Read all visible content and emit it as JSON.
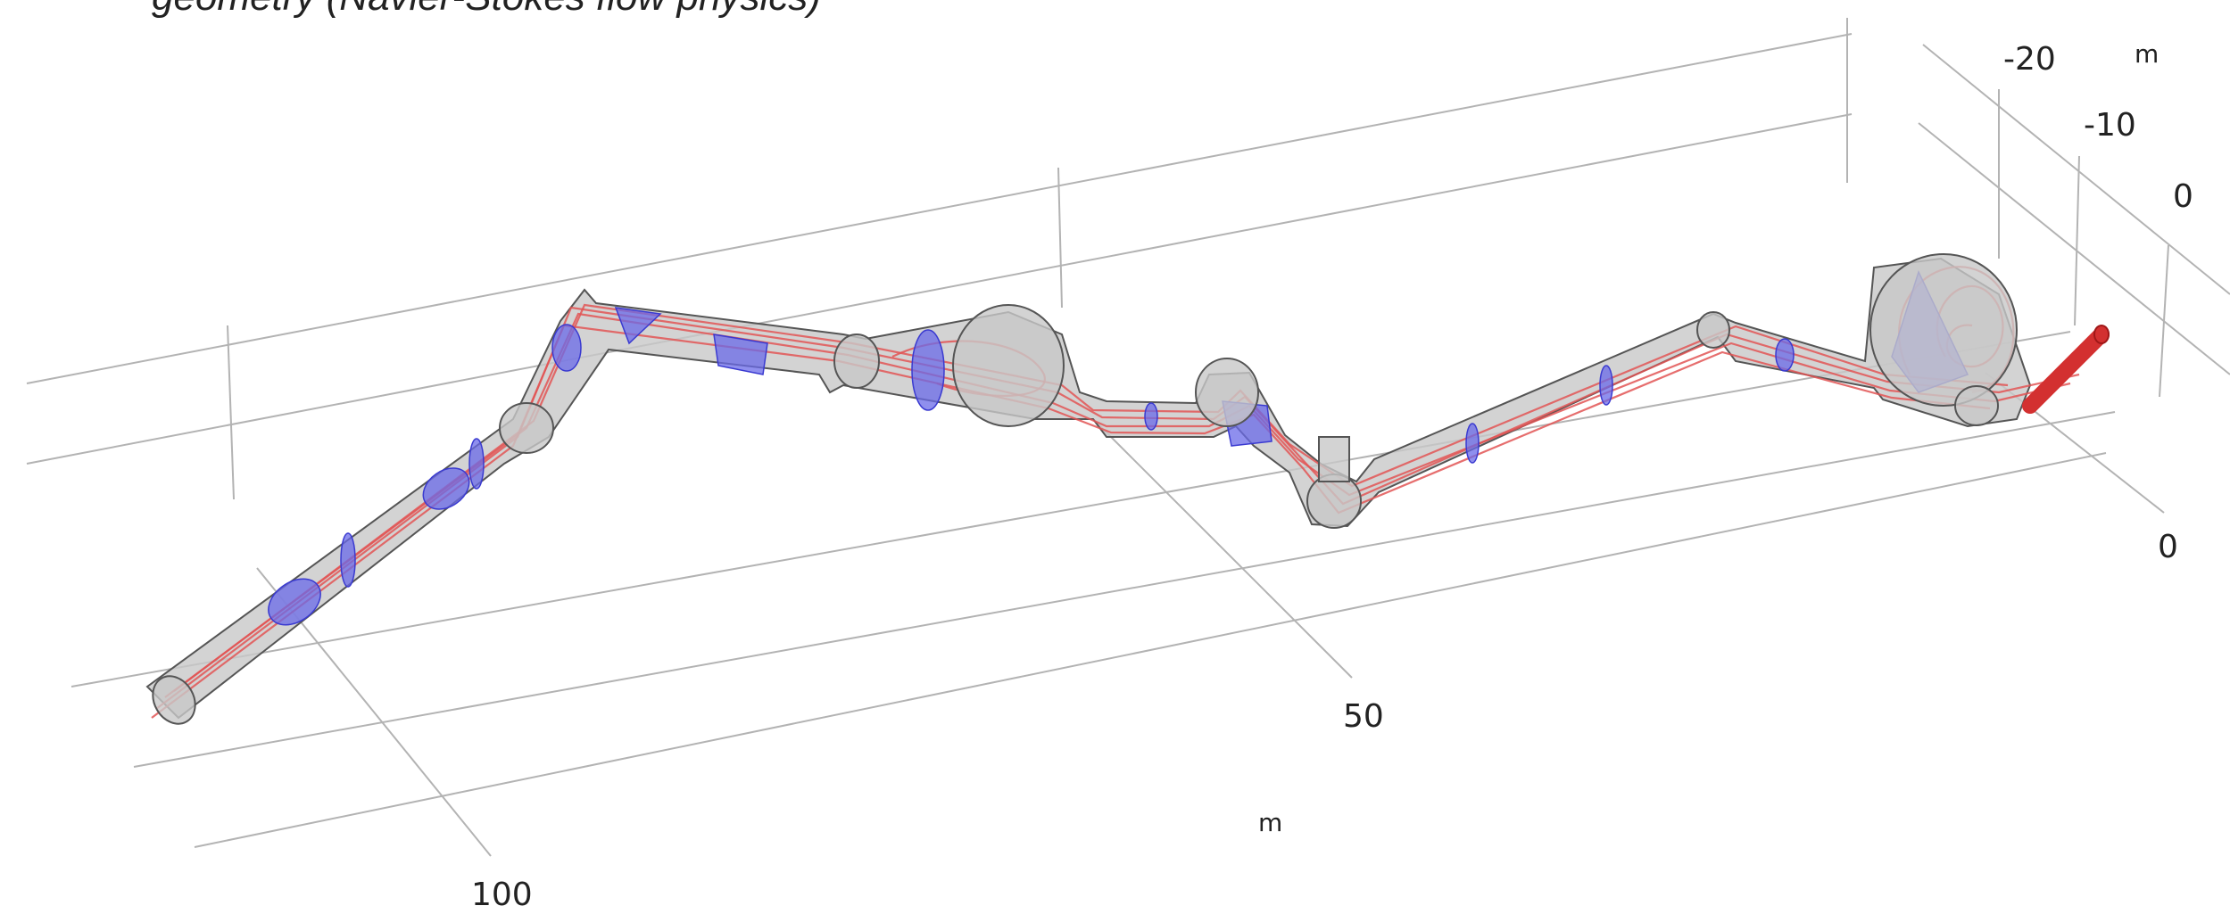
{
  "caption": "geometry (Navier-Stokes flow physics)",
  "axes": {
    "x_ticks": [
      "100",
      "50"
    ],
    "x_unit": "m",
    "y_ticks": [
      "-20",
      "-10",
      "0"
    ],
    "y_unit": "m",
    "z_ticks": [
      "0"
    ]
  },
  "colors": {
    "pipe_shell": "#c8c8c8",
    "streamline": "#e25555",
    "cross_section": "#6a6ae8",
    "outlet": "#d33030"
  }
}
